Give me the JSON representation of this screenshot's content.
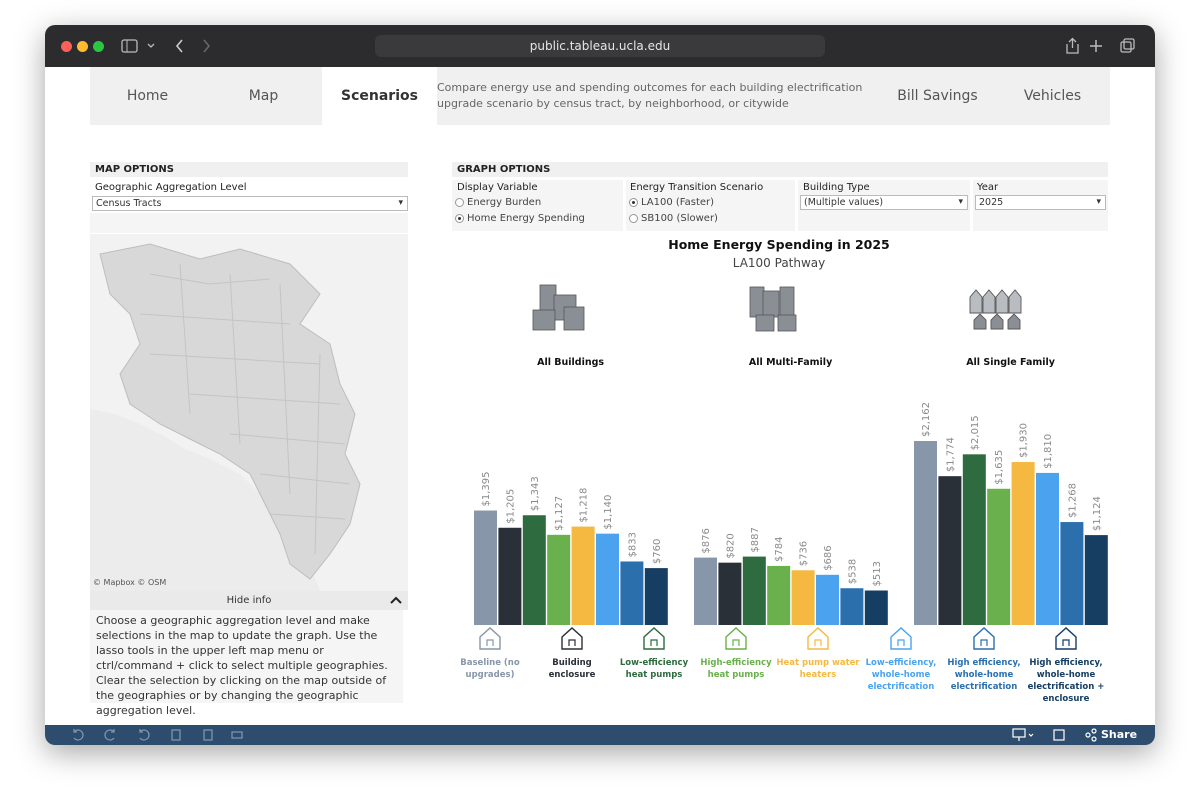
{
  "browser": {
    "url": "public.tableau.ucla.edu"
  },
  "nav": {
    "home": "Home",
    "map": "Map",
    "scenarios": "Scenarios",
    "description": "Compare energy use and spending outcomes for each building electrification upgrade scenario by census tract, by neighborhood, or citywide",
    "bill_savings": "Bill Savings",
    "vehicles": "Vehicles"
  },
  "map_options": {
    "header": "MAP OPTIONS",
    "aggregation_label": "Geographic Aggregation Level",
    "aggregation_value": "Census Tracts",
    "attribution": "© Mapbox © OSM",
    "hide_info": "Hide info",
    "info": "Choose a geographic aggregation level and make selections in the map to update the graph. Use the lasso tools in the upper left map menu or ctrl/command + click to select multiple geographies. Clear the selection by clicking on the map outside of the geographies or by changing the geographic aggregation level."
  },
  "graph_options": {
    "header": "GRAPH OPTIONS",
    "display_variable": {
      "label": "Display Variable",
      "options": [
        {
          "label": "Energy Burden",
          "selected": false
        },
        {
          "label": "Home Energy Spending",
          "selected": true
        }
      ]
    },
    "scenario": {
      "label": "Energy Transition Scenario",
      "options": [
        {
          "label": "LA100 (Faster)",
          "selected": true
        },
        {
          "label": "SB100 (Slower)",
          "selected": false
        }
      ]
    },
    "building_type": {
      "label": "Building Type",
      "value": "(Multiple values)"
    },
    "year": {
      "label": "Year",
      "value": "2025"
    }
  },
  "chart_data": {
    "type": "bar",
    "title": "Home Energy Spending in 2025",
    "subtitle": "LA100 Pathway",
    "categories": [
      "All Buildings",
      "All Multi-Family",
      "All Single Family"
    ],
    "series": [
      {
        "name": "Baseline (no upgrades)",
        "color": "#8796a8",
        "values": [
          1395,
          876,
          2162
        ],
        "value_labels": [
          "$1,395",
          "$876",
          "$2,162"
        ]
      },
      {
        "name": "Building enclosure",
        "color": "#2a3038",
        "values": [
          1205,
          820,
          1774
        ],
        "value_labels": [
          "$1,205",
          "$820",
          "$1,774"
        ]
      },
      {
        "name": "Low-efficiency heat pumps",
        "color": "#2e6b3e",
        "values": [
          1343,
          887,
          2015
        ],
        "value_labels": [
          "$1,343",
          "$887",
          "$2,015"
        ]
      },
      {
        "name": "High-efficiency heat pumps",
        "color": "#6ab04c",
        "values": [
          1127,
          784,
          1635
        ],
        "value_labels": [
          "$1,127",
          "$784",
          "$1,635"
        ]
      },
      {
        "name": "Heat pump water heaters",
        "color": "#f5b942",
        "values": [
          1218,
          736,
          1930
        ],
        "value_labels": [
          "$1,218",
          "$736",
          "$1,930"
        ]
      },
      {
        "name": "Low-efficiency, whole-home electrification",
        "color": "#4ba3f0",
        "values": [
          1140,
          686,
          1810
        ],
        "value_labels": [
          "$1,140",
          "$686",
          "$1,810"
        ]
      },
      {
        "name": "High efficiency, whole-home electrification",
        "color": "#2c6fad",
        "values": [
          833,
          538,
          1268
        ],
        "value_labels": [
          "$833",
          "$538",
          "$1,268"
        ]
      },
      {
        "name": "High efficiency, whole-home electrification + enclosure",
        "color": "#163e63",
        "values": [
          760,
          513,
          1124
        ],
        "value_labels": [
          "$760",
          "$513",
          "$1,124"
        ]
      }
    ]
  },
  "toolbar": {
    "share": "Share"
  }
}
